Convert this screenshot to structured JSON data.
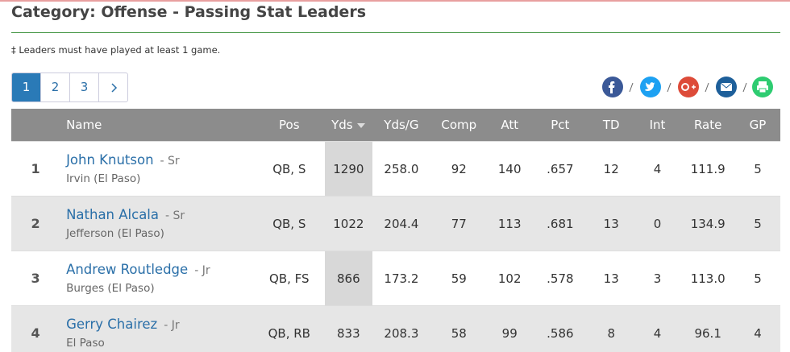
{
  "header": {
    "title": "Category: Offense - Passing Stat Leaders"
  },
  "note": "‡ Leaders must have played at least 1 game.",
  "pagination": [
    "1",
    "2",
    "3"
  ],
  "table": {
    "columns": [
      "Name",
      "Pos",
      "Yds",
      "Yds/G",
      "Comp",
      "Att",
      "Pct",
      "TD",
      "Int",
      "Rate",
      "GP"
    ],
    "rows": [
      {
        "rank": "1",
        "name": "John Knutson",
        "class": "- Sr",
        "school": "Irvin (El Paso)",
        "stats": [
          "QB, S",
          "1290",
          "258.0",
          "92",
          "140",
          ".657",
          "12",
          "4",
          "111.9",
          "5"
        ]
      },
      {
        "rank": "2",
        "name": "Nathan Alcala",
        "class": "- Sr",
        "school": "Jefferson (El Paso)",
        "stats": [
          "QB, S",
          "1022",
          "204.4",
          "77",
          "113",
          ".681",
          "13",
          "0",
          "134.9",
          "5"
        ]
      },
      {
        "rank": "3",
        "name": "Andrew Routledge",
        "class": "- Jr",
        "school": "Burges (El Paso)",
        "stats": [
          "QB, FS",
          "866",
          "173.2",
          "59",
          "102",
          ".578",
          "13",
          "3",
          "113.0",
          "5"
        ]
      },
      {
        "rank": "4",
        "name": "Gerry Chairez",
        "class": "- Jr",
        "school": "El Paso",
        "stats": [
          "QB, RB",
          "833",
          "208.3",
          "58",
          "99",
          ".586",
          "8",
          "4",
          "96.1",
          "4"
        ]
      }
    ]
  }
}
